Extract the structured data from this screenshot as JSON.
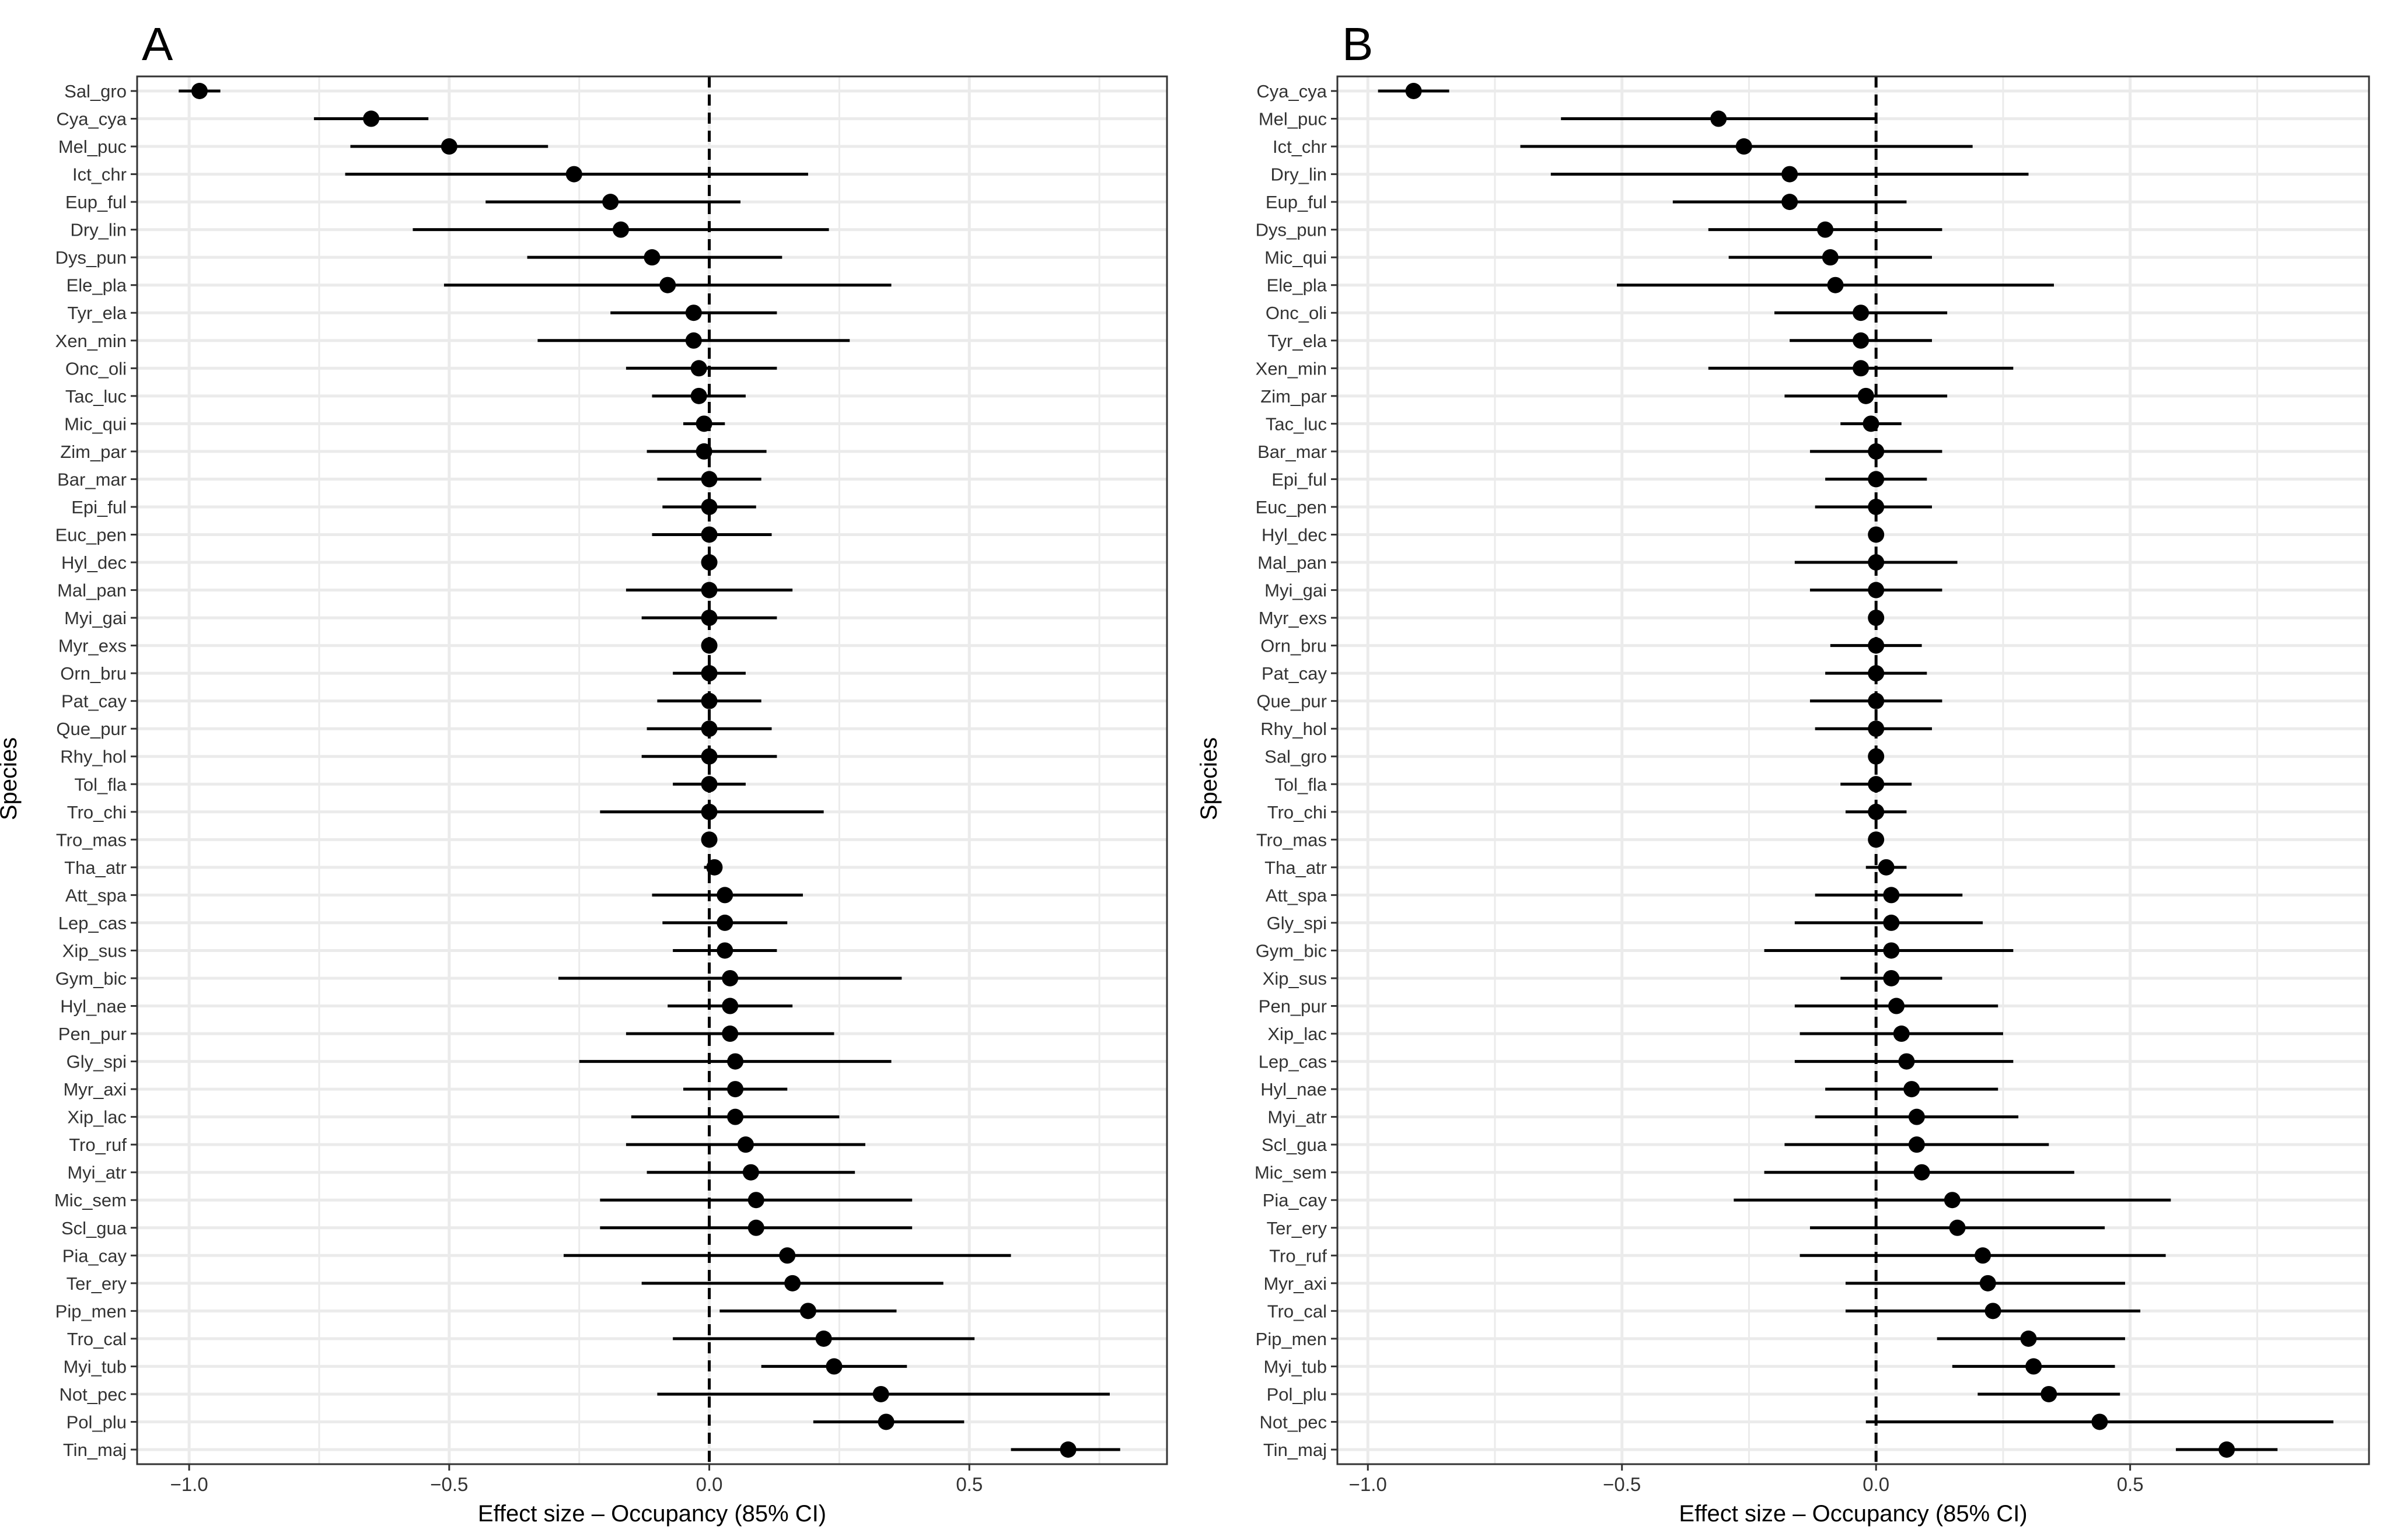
{
  "chart_data": [
    {
      "type": "scatter",
      "panel_label": "A",
      "title": "",
      "xlabel": "Effect size – Occupancy (85% CI)",
      "ylabel": "Species",
      "xlim": [
        -1.1,
        0.88
      ],
      "x_ticks": [
        -1.0,
        -0.5,
        0.0,
        0.5
      ],
      "x_tick_labels": [
        "−1.0",
        "−0.5",
        "0.0",
        "0.5"
      ],
      "reference_line_x": 0,
      "grid": true,
      "species": [
        "Sal_gro",
        "Cya_cya",
        "Mel_puc",
        "Ict_chr",
        "Eup_ful",
        "Dry_lin",
        "Dys_pun",
        "Ele_pla",
        "Tyr_ela",
        "Xen_min",
        "Onc_oli",
        "Tac_luc",
        "Mic_qui",
        "Zim_par",
        "Bar_mar",
        "Epi_ful",
        "Euc_pen",
        "Hyl_dec",
        "Mal_pan",
        "Myi_gai",
        "Myr_exs",
        "Orn_bru",
        "Pat_cay",
        "Que_pur",
        "Rhy_hol",
        "Tol_fla",
        "Tro_chi",
        "Tro_mas",
        "Tha_atr",
        "Att_spa",
        "Lep_cas",
        "Xip_sus",
        "Gym_bic",
        "Hyl_nae",
        "Pen_pur",
        "Gly_spi",
        "Myr_axi",
        "Xip_lac",
        "Tro_ruf",
        "Myi_atr",
        "Mic_sem",
        "Scl_gua",
        "Pia_cay",
        "Ter_ery",
        "Pip_men",
        "Tro_cal",
        "Myi_tub",
        "Not_pec",
        "Pol_plu",
        "Tin_maj"
      ],
      "estimate": [
        -0.98,
        -0.65,
        -0.5,
        -0.26,
        -0.19,
        -0.17,
        -0.11,
        -0.08,
        -0.03,
        -0.03,
        -0.02,
        -0.02,
        -0.01,
        -0.01,
        0.0,
        0.0,
        0.0,
        0.0,
        0.0,
        0.0,
        0.0,
        0.0,
        0.0,
        0.0,
        0.0,
        0.0,
        0.0,
        0.0,
        0.01,
        0.03,
        0.03,
        0.03,
        0.04,
        0.04,
        0.04,
        0.05,
        0.05,
        0.05,
        0.07,
        0.08,
        0.09,
        0.09,
        0.15,
        0.16,
        0.19,
        0.22,
        0.24,
        0.33,
        0.34,
        0.69
      ],
      "lower": [
        -1.02,
        -0.76,
        -0.69,
        -0.7,
        -0.43,
        -0.57,
        -0.35,
        -0.51,
        -0.19,
        -0.33,
        -0.16,
        -0.11,
        -0.05,
        -0.12,
        -0.1,
        -0.09,
        -0.11,
        -0.01,
        -0.16,
        -0.13,
        -0.01,
        -0.07,
        -0.1,
        -0.12,
        -0.13,
        -0.07,
        -0.21,
        -0.01,
        -0.01,
        -0.11,
        -0.09,
        -0.07,
        -0.29,
        -0.08,
        -0.16,
        -0.25,
        -0.05,
        -0.15,
        -0.16,
        -0.12,
        -0.21,
        -0.21,
        -0.28,
        -0.13,
        0.02,
        -0.07,
        0.1,
        -0.1,
        0.2,
        0.58
      ],
      "upper": [
        -0.94,
        -0.54,
        -0.31,
        0.19,
        0.06,
        0.23,
        0.14,
        0.35,
        0.13,
        0.27,
        0.13,
        0.07,
        0.03,
        0.11,
        0.1,
        0.09,
        0.12,
        0.01,
        0.16,
        0.13,
        0.01,
        0.07,
        0.1,
        0.12,
        0.13,
        0.07,
        0.22,
        0.01,
        0.02,
        0.18,
        0.15,
        0.13,
        0.37,
        0.16,
        0.24,
        0.35,
        0.15,
        0.25,
        0.3,
        0.28,
        0.39,
        0.39,
        0.58,
        0.45,
        0.36,
        0.51,
        0.38,
        0.77,
        0.49,
        0.79
      ]
    },
    {
      "type": "scatter",
      "panel_label": "B",
      "title": "",
      "xlabel": "Effect size – Occupancy (85% CI)",
      "ylabel": "Species",
      "xlim": [
        -1.06,
        0.97
      ],
      "x_ticks": [
        -1.0,
        -0.5,
        0.0,
        0.5
      ],
      "x_tick_labels": [
        "−1.0",
        "−0.5",
        "0.0",
        "0.5"
      ],
      "reference_line_x": 0,
      "grid": true,
      "species": [
        "Cya_cya",
        "Mel_puc",
        "Ict_chr",
        "Dry_lin",
        "Eup_ful",
        "Dys_pun",
        "Mic_qui",
        "Ele_pla",
        "Onc_oli",
        "Tyr_ela",
        "Xen_min",
        "Zim_par",
        "Tac_luc",
        "Bar_mar",
        "Epi_ful",
        "Euc_pen",
        "Hyl_dec",
        "Mal_pan",
        "Myi_gai",
        "Myr_exs",
        "Orn_bru",
        "Pat_cay",
        "Que_pur",
        "Rhy_hol",
        "Sal_gro",
        "Tol_fla",
        "Tro_chi",
        "Tro_mas",
        "Tha_atr",
        "Att_spa",
        "Gly_spi",
        "Gym_bic",
        "Xip_sus",
        "Pen_pur",
        "Xip_lac",
        "Lep_cas",
        "Hyl_nae",
        "Myi_atr",
        "Scl_gua",
        "Mic_sem",
        "Pia_cay",
        "Ter_ery",
        "Tro_ruf",
        "Myr_axi",
        "Tro_cal",
        "Pip_men",
        "Myi_tub",
        "Pol_plu",
        "Not_pec",
        "Tin_maj"
      ],
      "estimate": [
        -0.91,
        -0.31,
        -0.26,
        -0.17,
        -0.17,
        -0.1,
        -0.09,
        -0.08,
        -0.03,
        -0.03,
        -0.03,
        -0.02,
        -0.01,
        0.0,
        0.0,
        0.0,
        0.0,
        0.0,
        0.0,
        0.0,
        0.0,
        0.0,
        0.0,
        0.0,
        0.0,
        0.0,
        0.0,
        0.0,
        0.02,
        0.03,
        0.03,
        0.03,
        0.03,
        0.04,
        0.05,
        0.06,
        0.07,
        0.08,
        0.08,
        0.09,
        0.15,
        0.16,
        0.21,
        0.22,
        0.23,
        0.3,
        0.31,
        0.34,
        0.44,
        0.69
      ],
      "lower": [
        -0.98,
        -0.62,
        -0.7,
        -0.64,
        -0.4,
        -0.33,
        -0.29,
        -0.51,
        -0.2,
        -0.17,
        -0.33,
        -0.18,
        -0.07,
        -0.13,
        -0.1,
        -0.12,
        -0.01,
        -0.16,
        -0.13,
        -0.01,
        -0.09,
        -0.1,
        -0.13,
        -0.12,
        -0.01,
        -0.07,
        -0.06,
        -0.01,
        -0.02,
        -0.12,
        -0.16,
        -0.22,
        -0.07,
        -0.16,
        -0.15,
        -0.16,
        -0.1,
        -0.12,
        -0.18,
        -0.22,
        -0.28,
        -0.13,
        -0.15,
        -0.06,
        -0.06,
        0.12,
        0.15,
        0.2,
        -0.02,
        0.59
      ],
      "upper": [
        -0.84,
        0.0,
        0.19,
        0.3,
        0.06,
        0.13,
        0.11,
        0.35,
        0.14,
        0.11,
        0.27,
        0.14,
        0.05,
        0.13,
        0.1,
        0.11,
        0.01,
        0.16,
        0.13,
        0.01,
        0.09,
        0.1,
        0.13,
        0.11,
        0.01,
        0.07,
        0.06,
        0.01,
        0.06,
        0.17,
        0.21,
        0.27,
        0.13,
        0.24,
        0.25,
        0.27,
        0.24,
        0.28,
        0.34,
        0.39,
        0.58,
        0.45,
        0.57,
        0.49,
        0.52,
        0.49,
        0.47,
        0.48,
        0.9,
        0.79
      ]
    }
  ]
}
